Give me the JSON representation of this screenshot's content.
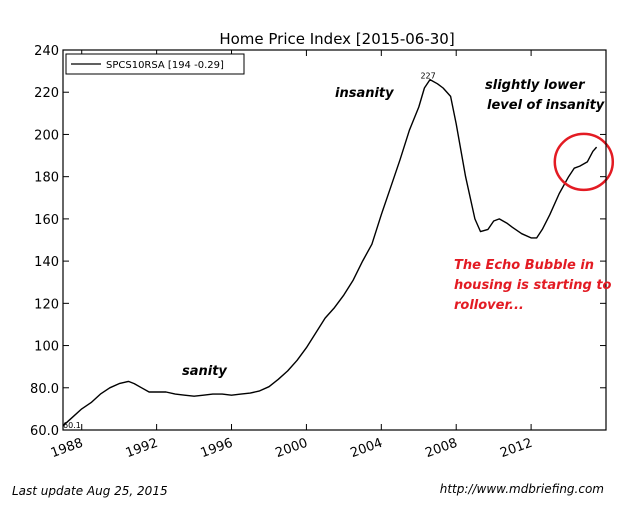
{
  "chart_data": {
    "type": "line",
    "title": "Home Price Index  [2015-06-30]",
    "xlabel": "",
    "ylabel": "",
    "xlim": [
      1987.0,
      2016.0
    ],
    "ylim": [
      60,
      240
    ],
    "xticks": [
      1988,
      1992,
      1996,
      2000,
      2004,
      2008,
      2012
    ],
    "yticks": [
      60,
      80,
      100,
      120,
      140,
      160,
      180,
      200,
      220,
      240
    ],
    "ytick_labels": [
      "60.0",
      "80.0",
      "100",
      "120",
      "140",
      "160",
      "180",
      "200",
      "220",
      "240"
    ],
    "grid": false,
    "legend": "top-left",
    "series": [
      {
        "name": "SPCS10RSA [194 -0.29]",
        "color": "#000000",
        "x": [
          1987.0,
          1987.5,
          1988.0,
          1988.5,
          1989.0,
          1989.5,
          1990.0,
          1990.5,
          1990.8,
          1991.2,
          1991.6,
          1992.0,
          1992.5,
          1993.0,
          1993.5,
          1994.0,
          1994.5,
          1995.0,
          1995.5,
          1996.0,
          1996.5,
          1997.0,
          1997.5,
          1998.0,
          1998.5,
          1999.0,
          1999.5,
          2000.0,
          2000.5,
          2001.0,
          2001.5,
          2002.0,
          2002.5,
          2003.0,
          2003.5,
          2004.0,
          2004.5,
          2005.0,
          2005.5,
          2006.0,
          2006.3,
          2006.6,
          2007.0,
          2007.3,
          2007.7,
          2008.0,
          2008.5,
          2009.0,
          2009.3,
          2009.7,
          2010.0,
          2010.3,
          2010.7,
          2011.0,
          2011.5,
          2012.0,
          2012.3,
          2012.6,
          2013.0,
          2013.5,
          2014.0,
          2014.3,
          2014.6,
          2015.0,
          2015.3,
          2015.5
        ],
        "y": [
          62,
          66,
          70,
          73,
          77,
          80,
          82,
          83,
          82,
          80,
          78,
          78,
          78,
          77,
          76.5,
          76,
          76.5,
          77,
          77,
          76.5,
          77,
          77.5,
          78.5,
          80.5,
          84,
          88,
          93,
          99,
          106,
          113,
          118,
          124,
          131,
          140,
          148,
          162,
          175,
          188,
          202,
          213,
          222,
          226,
          224,
          222,
          218,
          205,
          180,
          160,
          154,
          155,
          159,
          160,
          158,
          156,
          153,
          151,
          151,
          155,
          162,
          172,
          180,
          184,
          185,
          187,
          192,
          194
        ]
      }
    ],
    "annotations": [
      {
        "text": "227",
        "x": 2006.5,
        "y": 227
      },
      {
        "text": "60.1",
        "x": 1987.0,
        "y": 60
      }
    ],
    "callouts": {
      "sanity": "sanity",
      "insanity": "insanity",
      "lower_line1": "slightly lower",
      "lower_line2": "level of insanity",
      "echo_line1": "The Echo Bubble in",
      "echo_line2": "housing is starting to",
      "echo_line3": "rollover..."
    },
    "highlight_circle": {
      "x": 2014.6,
      "y": 187
    },
    "highlight_color": "#e31b23"
  },
  "footer": {
    "last_update": "Last update Aug 25, 2015",
    "source": "http://www.mdbriefing.com"
  }
}
